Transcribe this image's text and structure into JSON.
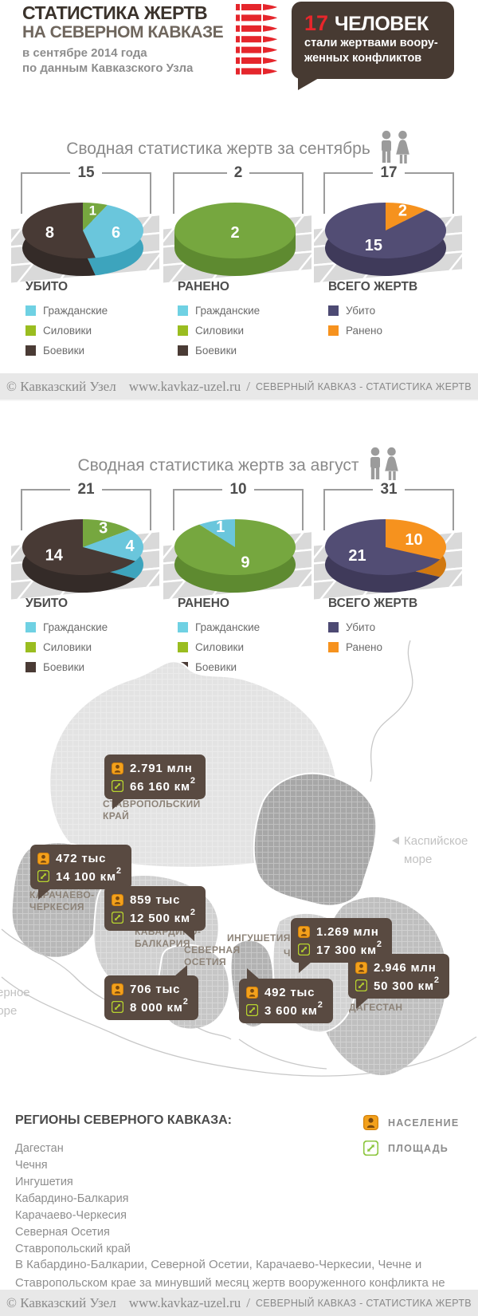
{
  "header": {
    "title_line1": "СТАТИСТИКА ЖЕРТВ",
    "title_line2": "НА СЕВЕРНОМ КАВКАЗЕ",
    "subtitle_line1": "в сентябре 2014 года",
    "subtitle_line2": "по данным Кавказского Узла",
    "badge": {
      "count": "17",
      "count_label": "ЧЕЛОВЕК",
      "text_line1": "стали жертвами воору-",
      "text_line2": "женных  конфликтов"
    },
    "accent_red": "#e5262c",
    "bubble_brown": "#473a32"
  },
  "bar": {
    "copyright": "© Кавказский Узел",
    "site": "www.kavkaz-uzel.ru",
    "separator": "/",
    "label": "СЕВЕРНЫЙ КАВКАЗ - СТАТИСТИКА ЖЕРТВ"
  },
  "chart_data": [
    {
      "type": "pie",
      "title": "Сводная статистика жертв за сентябрь",
      "pies": [
        {
          "label": "УБИТО",
          "total": 15,
          "slices": [
            {
              "name": "Силовики",
              "value": 1,
              "color": "#76a73f",
              "side": "#5e8a30"
            },
            {
              "name": "Гражданские",
              "value": 6,
              "color": "#6ac6dc",
              "side": "#3da4bd"
            },
            {
              "name": "Боевики",
              "value": 8,
              "color": "#483a35",
              "side": "#342b28"
            }
          ],
          "legend": [
            {
              "name": "Гражданские",
              "color": "#6fd1e3"
            },
            {
              "name": "Силовики",
              "color": "#9abd20"
            },
            {
              "name": "Боевики",
              "color": "#4a3b35"
            }
          ]
        },
        {
          "label": "РАНЕНО",
          "total": 2,
          "slices": [
            {
              "name": "Силовики",
              "value": 2,
              "color": "#76a73f",
              "side": "#5e8a30"
            }
          ],
          "legend": [
            {
              "name": "Гражданские",
              "color": "#6fd1e3"
            },
            {
              "name": "Силовики",
              "color": "#9abd20"
            },
            {
              "name": "Боевики",
              "color": "#4a3b35"
            }
          ]
        },
        {
          "label": "ВСЕГО ЖЕРТВ",
          "total": 17,
          "slices": [
            {
              "name": "Ранено",
              "value": 2,
              "color": "#f6921e",
              "side": "#d1780f"
            },
            {
              "name": "Убито",
              "value": 15,
              "color": "#524d74",
              "side": "#3f3a5a"
            }
          ],
          "legend": [
            {
              "name": "Убито",
              "color": "#4d4a73"
            },
            {
              "name": "Ранено",
              "color": "#f6921e"
            }
          ]
        }
      ]
    },
    {
      "type": "pie",
      "title": "Сводная статистика жертв за август",
      "pies": [
        {
          "label": "УБИТО",
          "total": 21,
          "slices": [
            {
              "name": "Силовики",
              "value": 3,
              "color": "#76a73f",
              "side": "#5e8a30"
            },
            {
              "name": "Гражданские",
              "value": 4,
              "color": "#6ac6dc",
              "side": "#3da4bd"
            },
            {
              "name": "Боевики",
              "value": 14,
              "color": "#483a35",
              "side": "#342b28"
            }
          ],
          "legend": [
            {
              "name": "Гражданские",
              "color": "#6fd1e3"
            },
            {
              "name": "Силовики",
              "color": "#9abd20"
            },
            {
              "name": "Боевики",
              "color": "#4a3b35"
            }
          ]
        },
        {
          "label": "РАНЕНО",
          "total": 10,
          "slices": [
            {
              "name": "Силовики",
              "value": 9,
              "color": "#76a73f",
              "side": "#5e8a30"
            },
            {
              "name": "Гражданские",
              "value": 1,
              "color": "#6ac6dc",
              "side": "#3da4bd"
            }
          ],
          "legend": [
            {
              "name": "Гражданские",
              "color": "#6fd1e3"
            },
            {
              "name": "Силовики",
              "color": "#9abd20"
            },
            {
              "name": "Боевики",
              "color": "#4a3b35"
            }
          ]
        },
        {
          "label": "ВСЕГО ЖЕРТВ",
          "total": 31,
          "slices": [
            {
              "name": "Ранено",
              "value": 10,
              "color": "#f6921e",
              "side": "#d1780f"
            },
            {
              "name": "Убито",
              "value": 21,
              "color": "#524d74",
              "side": "#3f3a5a"
            }
          ],
          "legend": [
            {
              "name": "Убито",
              "color": "#4d4a73"
            },
            {
              "name": "Ранено",
              "color": "#f6921e"
            }
          ]
        }
      ]
    }
  ],
  "map": {
    "water_labels": [
      "Каспийское\nморе",
      "Черное\nморе"
    ],
    "sq": "2",
    "regions": [
      {
        "name": "СТАВРОПОЛЬСКИЙ\nКРАЙ",
        "population": "2.791 млн",
        "area": "66 160 км"
      },
      {
        "name": "КАРАЧАЕВО-\nЧЕРКЕСИЯ",
        "population": "472 тыс",
        "area": "14 100 км"
      },
      {
        "name": "КАБАРДИНО-\nБАЛКАРИЯ",
        "population": "859 тыс",
        "area": "12 500 км"
      },
      {
        "name": "СЕВЕРНАЯ\nОСЕТИЯ",
        "population": "706 тыс",
        "area": "8 000 км"
      },
      {
        "name": "ИНГУШЕТИЯ",
        "population": "492 тыс",
        "area": "3 600 км"
      },
      {
        "name": "ЧЕЧНЯ",
        "population": "1.269 млн",
        "area": "17 300 км"
      },
      {
        "name": "ДАГЕСТАН",
        "population": "2.946 млн",
        "area": "50 300 км"
      }
    ],
    "legend": [
      {
        "label": "НАСЕЛЕНИЕ"
      },
      {
        "label": "ПЛОЩАДЬ"
      }
    ]
  },
  "regions_block": {
    "heading": "РЕГИОНЫ СЕВЕРНОГО КАВКАЗА:",
    "items": [
      "Дагестан",
      "Чечня",
      "Ингушетия",
      "Кабардино-Балкария",
      "Карачаево-Черкесия",
      "Северная Осетия",
      "Ставропольский край"
    ]
  },
  "note": "В Кабардино-Балкарии, Северной Осетии, Карачаево-Черкесии, Чечне и Ставропольском крае за минувший месяц жертв вооруженного конфликта не было."
}
